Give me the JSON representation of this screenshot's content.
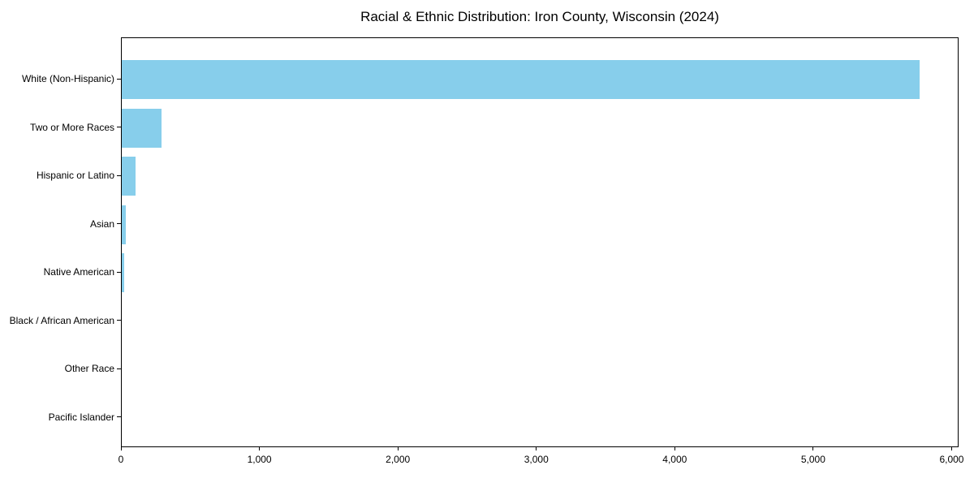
{
  "title": "Racial & Ethnic Distribution: Iron County, Wisconsin (2024)",
  "colors": {
    "bar": "#87CEEB",
    "axis": "#000000",
    "text": "#000000",
    "background": "#ffffff"
  },
  "chart_data": {
    "type": "bar",
    "orientation": "horizontal",
    "title": "Racial & Ethnic Distribution: Iron County, Wisconsin (2024)",
    "categories": [
      "White (Non-Hispanic)",
      "Two or More Races",
      "Hispanic or Latino",
      "Asian",
      "Native American",
      "Black / African American",
      "Other Race",
      "Pacific Islander"
    ],
    "values": [
      5760,
      290,
      100,
      30,
      15,
      0,
      0,
      0
    ],
    "xlabel": "",
    "ylabel": "",
    "xlim": [
      0,
      6050
    ],
    "x_ticks": [
      0,
      1000,
      2000,
      3000,
      4000,
      5000,
      6000
    ],
    "x_tick_labels": [
      "0",
      "1,000",
      "2,000",
      "3,000",
      "4,000",
      "5,000",
      "6,000"
    ],
    "bar_color": "#87CEEB",
    "grid": false,
    "legend": null
  }
}
